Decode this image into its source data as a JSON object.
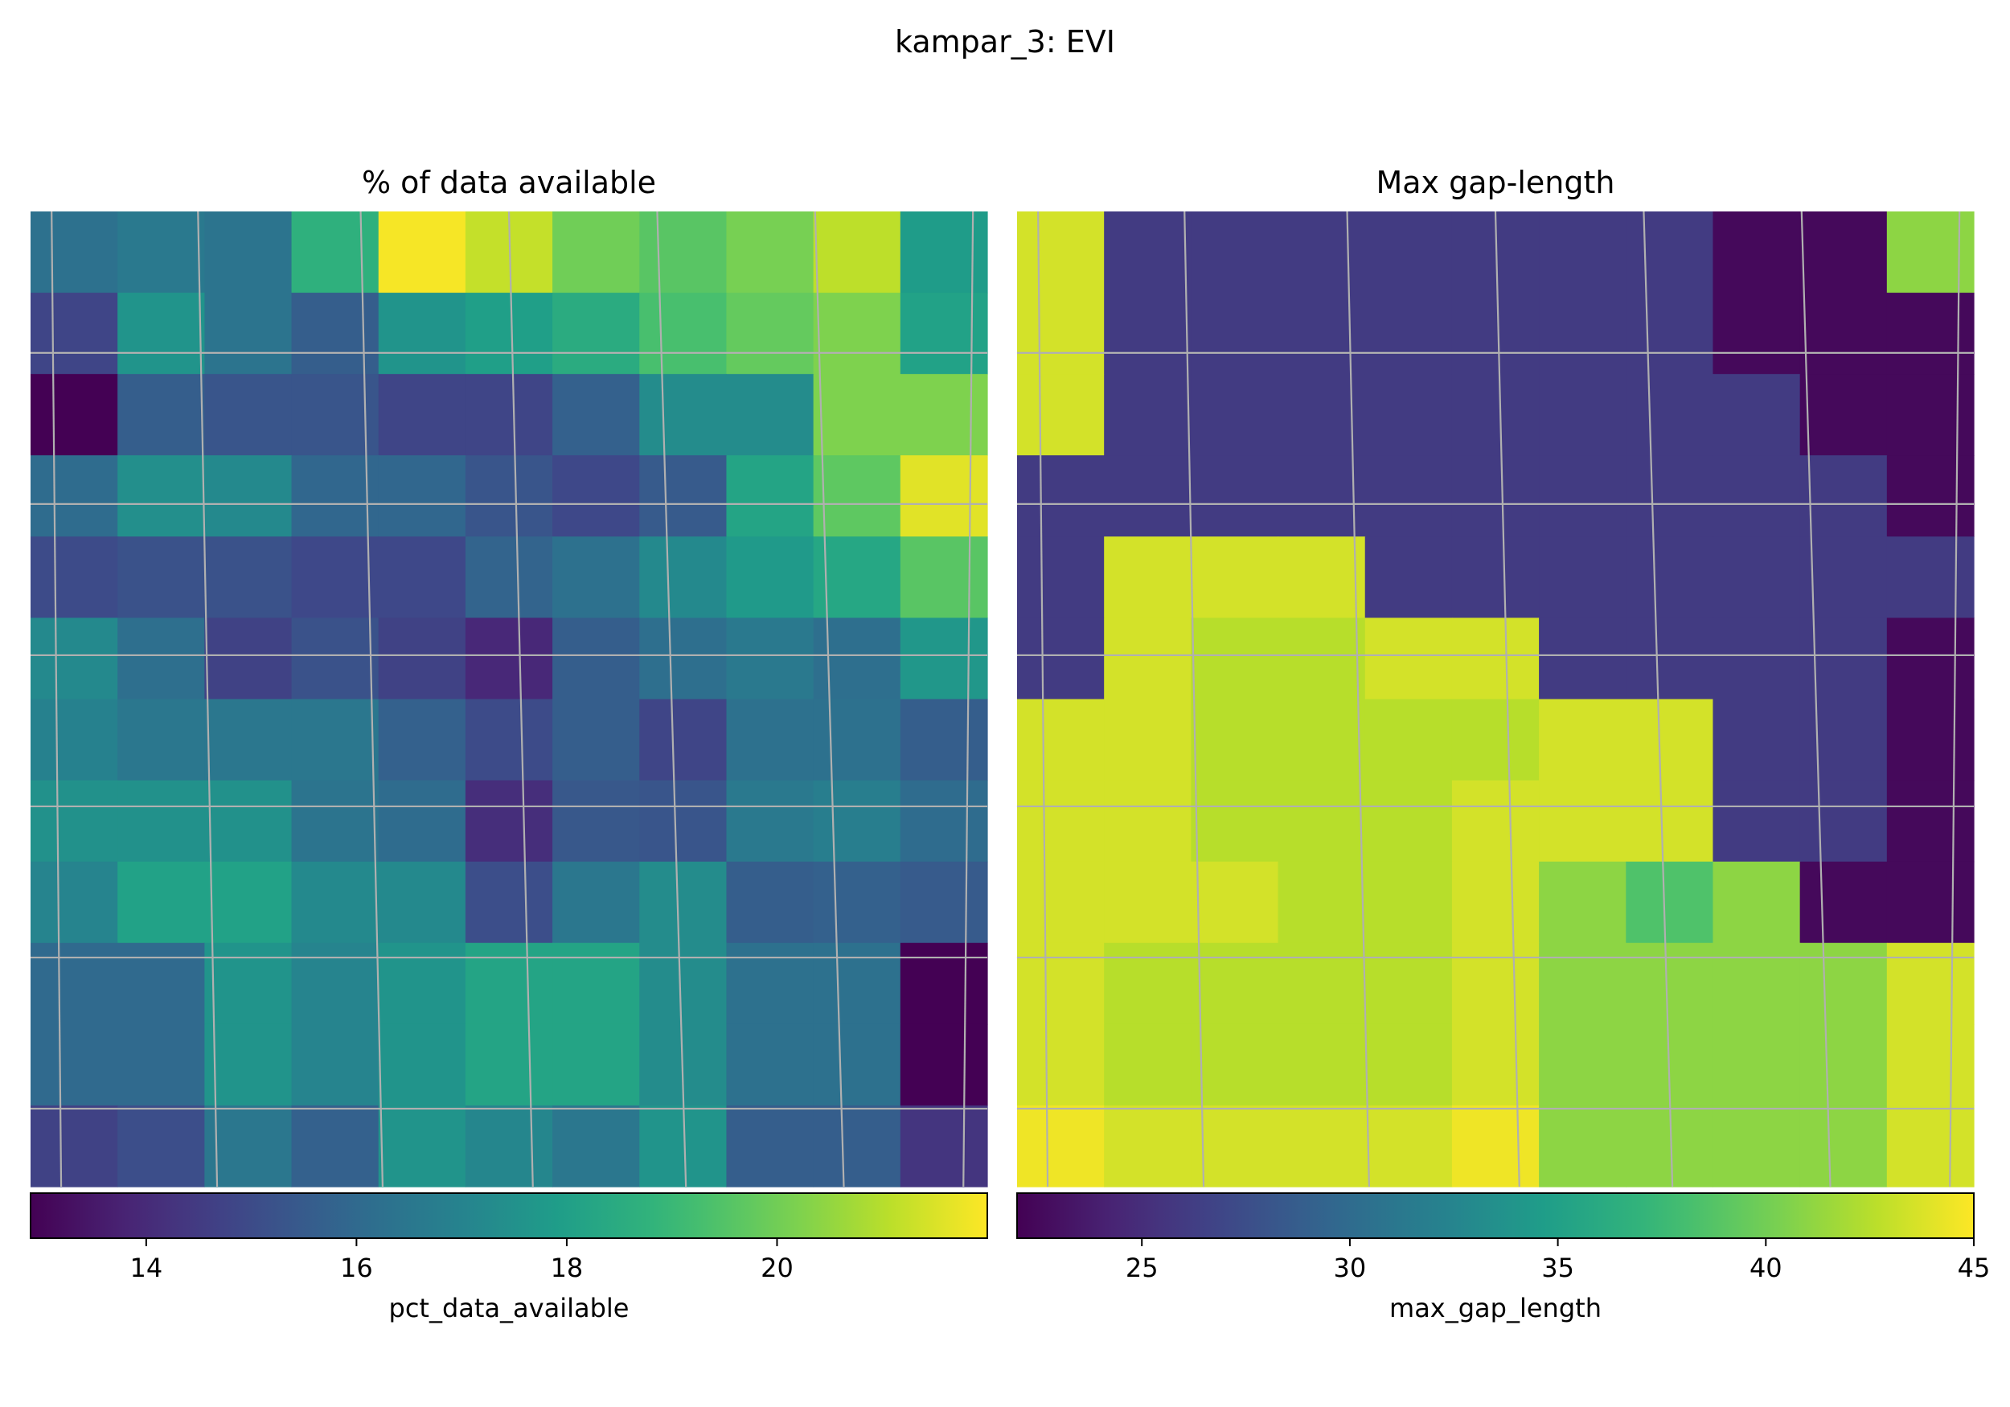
{
  "figure": {
    "title": "kampar_3: EVI"
  },
  "chart_data": [
    {
      "type": "heatmap",
      "title": "% of data available",
      "colormap": "viridis",
      "grid": true,
      "rows": 12,
      "cols": 11,
      "values": [
        [
          16.3,
          16.6,
          16.4,
          18.7,
          21.9,
          21.2,
          20.0,
          19.6,
          20.1,
          21.1,
          17.9
        ],
        [
          14.8,
          17.6,
          16.4,
          15.6,
          17.6,
          18.0,
          18.5,
          19.3,
          19.8,
          20.2,
          18.1
        ],
        [
          12.9,
          15.6,
          15.3,
          15.3,
          14.8,
          14.8,
          15.7,
          17.3,
          17.3,
          20.2,
          20.2
        ],
        [
          16.1,
          17.4,
          17.2,
          15.9,
          15.9,
          15.3,
          14.9,
          15.5,
          18.2,
          19.7,
          21.6
        ],
        [
          15.0,
          15.2,
          15.2,
          14.9,
          14.9,
          15.8,
          16.3,
          17.2,
          17.8,
          18.3,
          19.6
        ],
        [
          17.2,
          16.2,
          14.7,
          15.2,
          14.7,
          13.9,
          15.6,
          16.2,
          16.6,
          16.2,
          17.7
        ],
        [
          16.9,
          16.5,
          16.5,
          16.5,
          15.7,
          15.0,
          15.6,
          14.8,
          16.3,
          16.3,
          15.6
        ],
        [
          17.5,
          17.5,
          17.5,
          16.4,
          16.1,
          14.1,
          15.4,
          15.3,
          16.6,
          16.8,
          16.1
        ],
        [
          17.0,
          18.1,
          18.1,
          17.2,
          17.2,
          15.1,
          16.5,
          17.3,
          15.6,
          15.7,
          15.5
        ],
        [
          16.0,
          16.0,
          17.6,
          17.0,
          17.6,
          18.2,
          18.2,
          17.3,
          16.3,
          16.3,
          12.9
        ],
        [
          16.0,
          16.0,
          17.6,
          17.0,
          17.6,
          18.2,
          18.2,
          17.3,
          16.3,
          16.3,
          12.9
        ],
        [
          14.7,
          15.1,
          16.5,
          15.7,
          17.6,
          17.1,
          16.5,
          17.6,
          15.6,
          15.6,
          14.3
        ]
      ],
      "colorbar": {
        "label": "pct_data_available",
        "min": 12.9,
        "max": 22.0,
        "ticks": [
          14,
          16,
          18,
          20
        ]
      }
    },
    {
      "type": "heatmap",
      "title": "Max gap-length",
      "colormap": "viridis",
      "grid": true,
      "rows": 12,
      "cols": 11,
      "values": [
        [
          43.5,
          26.0,
          26.0,
          26.0,
          26.0,
          26.0,
          26.0,
          26.0,
          22.5,
          22.5,
          41.0
        ],
        [
          43.5,
          26.0,
          26.0,
          26.0,
          26.0,
          26.0,
          26.0,
          26.0,
          22.5,
          22.5,
          22.5
        ],
        [
          43.5,
          26.0,
          26.0,
          26.0,
          26.0,
          26.0,
          26.0,
          26.0,
          26.0,
          22.5,
          22.5
        ],
        [
          26.0,
          26.0,
          26.0,
          26.0,
          26.0,
          26.0,
          26.0,
          26.0,
          26.0,
          26.0,
          22.5
        ],
        [
          26.0,
          43.5,
          43.5,
          43.5,
          26.0,
          26.0,
          26.0,
          26.0,
          26.0,
          26.0,
          26.0
        ],
        [
          26.0,
          43.5,
          42.5,
          42.5,
          43.5,
          43.5,
          26.0,
          26.0,
          26.0,
          26.0,
          22.5
        ],
        [
          43.5,
          43.5,
          42.5,
          42.5,
          42.5,
          42.5,
          43.5,
          43.5,
          26.0,
          26.0,
          22.5
        ],
        [
          43.5,
          43.5,
          42.5,
          42.5,
          42.5,
          43.5,
          43.5,
          43.5,
          26.0,
          26.0,
          22.5
        ],
        [
          43.5,
          43.5,
          43.5,
          42.5,
          42.5,
          43.5,
          41.0,
          38.5,
          41.0,
          22.5,
          22.5
        ],
        [
          43.5,
          42.5,
          42.5,
          42.5,
          42.5,
          43.5,
          41.0,
          41.0,
          41.0,
          41.0,
          43.5
        ],
        [
          43.5,
          42.5,
          42.5,
          42.5,
          42.5,
          43.5,
          41.0,
          41.0,
          41.0,
          41.0,
          43.5
        ],
        [
          44.5,
          43.5,
          43.5,
          43.5,
          43.5,
          44.5,
          41.0,
          41.0,
          41.0,
          41.0,
          43.5
        ]
      ],
      "colorbar": {
        "label": "max_gap_length",
        "min": 22.0,
        "max": 45.0,
        "ticks": [
          25,
          30,
          35,
          40,
          45
        ]
      }
    }
  ]
}
